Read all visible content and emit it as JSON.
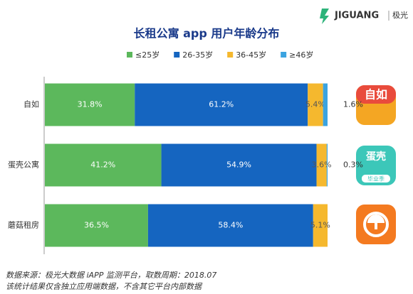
{
  "chart_data": {
    "type": "stacked_hbar",
    "title": "长租公寓 app 用户年龄分布",
    "brand": "JIGUANG",
    "brand_cn": "极光",
    "categories": [
      "自如",
      "蛋壳公寓",
      "蘑菇租房"
    ],
    "series": [
      {
        "name": "≤25岁",
        "color": "#5cb85c",
        "values": [
          31.8,
          41.2,
          36.5
        ],
        "value_labels": [
          "31.8%",
          "41.2%",
          "36.5%"
        ]
      },
      {
        "name": "26-35岁",
        "color": "#1565c0",
        "values": [
          61.2,
          54.9,
          58.4
        ],
        "value_labels": [
          "61.2%",
          "54.9%",
          "58.4%"
        ]
      },
      {
        "name": "36-45岁",
        "color": "#f5b82e",
        "values": [
          5.4,
          3.6,
          5.1
        ],
        "value_labels": [
          "5.4%",
          "3.6%",
          "5.1%"
        ]
      },
      {
        "name": "≥46岁",
        "color": "#3ba3e0",
        "values": [
          1.6,
          0.3,
          null
        ],
        "value_labels": [
          "1.6%",
          "0.3%",
          null
        ]
      }
    ],
    "xlim": [
      0,
      100
    ],
    "icon_labels": [
      "自如",
      "蛋壳",
      "毕业季"
    ],
    "footnotes": [
      "数据来源：极光大数据 iAPP 监测平台，取数周期：2018.07",
      "该统计结果仅含独立应用端数据，不含其它平台内部数据"
    ]
  }
}
